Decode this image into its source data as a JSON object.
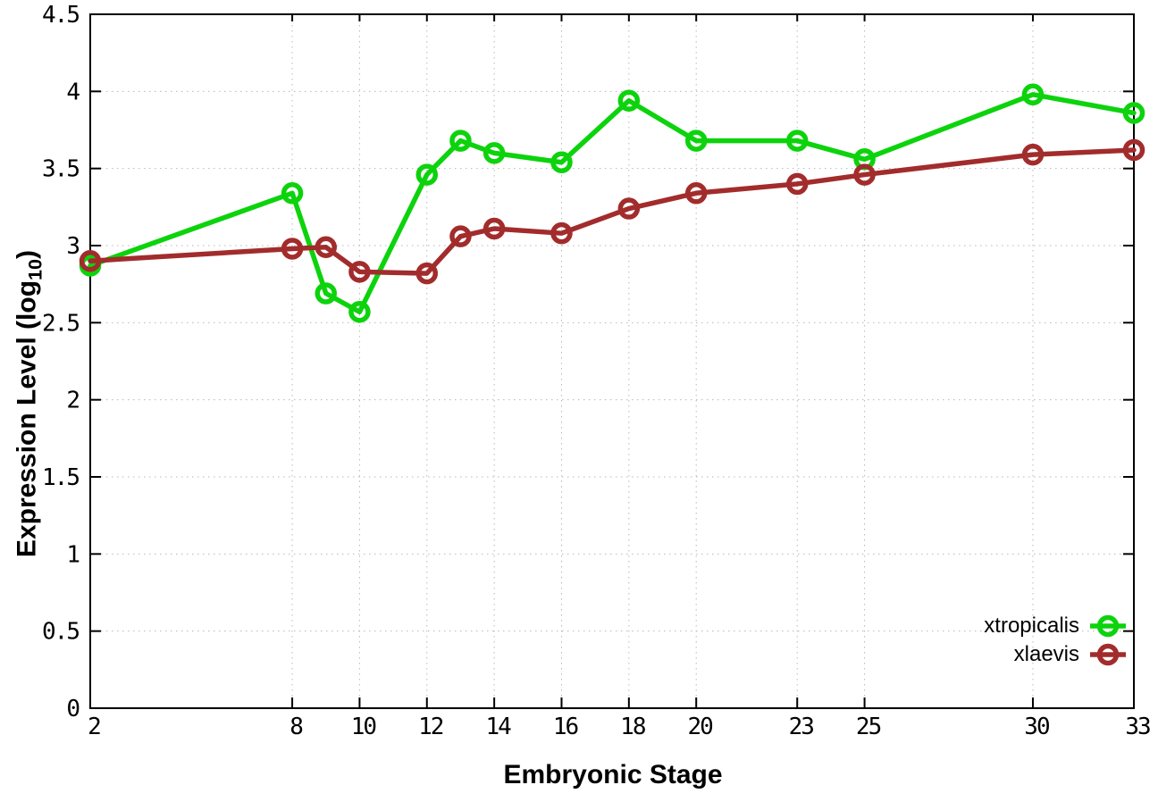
{
  "figure": {
    "background": "#ffffff",
    "border_color": "#000000",
    "grid_color": "#b8b8b8"
  },
  "chart_data": {
    "type": "line",
    "title": "",
    "xlabel": "Embryonic Stage",
    "ylabel_prefix": "Expression Level (log",
    "ylabel_sub": "10",
    "ylabel_suffix": ")",
    "xlim": [
      2,
      33
    ],
    "ylim": [
      0,
      4.5
    ],
    "grid": true,
    "legend_position": "bottom-right",
    "marker": "open-circle",
    "x_tick_values": [
      2,
      8,
      10,
      12,
      14,
      16,
      18,
      20,
      23,
      25,
      30,
      33
    ],
    "x_tick_labels": [
      "2",
      "8",
      "10",
      "12",
      "14",
      "16",
      "18",
      "20",
      "23",
      "25",
      "30",
      "33"
    ],
    "y_tick_values": [
      0,
      0.5,
      1,
      1.5,
      2,
      2.5,
      3,
      3.5,
      4,
      4.5
    ],
    "y_tick_labels": [
      "0",
      "0.5",
      "1",
      "1.5",
      "2",
      "2.5",
      "3",
      "3.5",
      "4",
      "4.5"
    ],
    "x": [
      2,
      8,
      9,
      10,
      12,
      13,
      14,
      16,
      18,
      20,
      23,
      25,
      30,
      33
    ],
    "series": [
      {
        "name": "xtropicalis",
        "color": "#0cd30c",
        "values": [
          2.87,
          3.34,
          2.69,
          2.57,
          3.46,
          3.68,
          3.6,
          3.54,
          3.94,
          3.68,
          3.68,
          3.56,
          3.98,
          3.86
        ]
      },
      {
        "name": "xlaevis",
        "color": "#a22c2c",
        "values": [
          2.9,
          2.98,
          2.99,
          2.83,
          2.82,
          3.06,
          3.11,
          3.08,
          3.24,
          3.34,
          3.4,
          3.46,
          3.59,
          3.62
        ]
      }
    ]
  }
}
